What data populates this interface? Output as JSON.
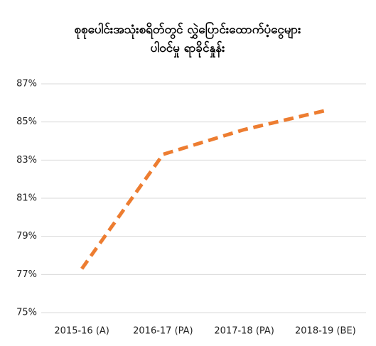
{
  "chart_data": {
    "type": "line",
    "title": [
      "စုစုပေါင်းအသုံးစရိတ်တွင် လွှဲပြောင်းထောက်ပံ့ငွေများ",
      "ပါဝင်မှု ရာခိုင်နှုန်း"
    ],
    "categories": [
      "2015-16 (A)",
      "2016-17 (PA)",
      "2017-18 (PA)",
      "2018-19 (BE)"
    ],
    "series": [
      {
        "color": "#ed7d31",
        "values": [
          77.3,
          83.3,
          84.6,
          85.6
        ]
      }
    ],
    "ylim": [
      75,
      87
    ],
    "yticks": [
      {
        "value": 75,
        "label": "75%"
      },
      {
        "value": 77,
        "label": "77%"
      },
      {
        "value": 79,
        "label": "79%"
      },
      {
        "value": 81,
        "label": "81%"
      },
      {
        "value": 83,
        "label": "83%"
      },
      {
        "value": 85,
        "label": "85%"
      },
      {
        "value": 87,
        "label": "87%"
      }
    ],
    "grid": true
  }
}
